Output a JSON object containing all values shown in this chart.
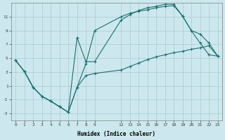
{
  "xlabel": "Humidex (Indice chaleur)",
  "bg_color": "#cce8ee",
  "grid_color": "#aacccc",
  "line_color": "#1a7070",
  "xlim": [
    -0.5,
    23.5
  ],
  "ylim": [
    -4.0,
    13.0
  ],
  "xtick_positions": [
    0,
    1,
    2,
    3,
    4,
    5,
    6,
    7,
    8,
    9,
    12,
    13,
    14,
    15,
    16,
    17,
    18,
    19,
    20,
    21,
    22,
    23
  ],
  "xtick_labels": [
    "0",
    "1",
    "2",
    "3",
    "4",
    "5",
    "6",
    "7",
    "8",
    "9",
    "12",
    "13",
    "14",
    "15",
    "16",
    "17",
    "18",
    "19",
    "20",
    "21",
    "22",
    "23"
  ],
  "yticks": [
    -3,
    -1,
    1,
    3,
    5,
    7,
    9,
    11
  ],
  "line1_x": [
    0,
    1,
    2,
    3,
    4,
    5,
    6,
    7,
    8,
    9,
    12,
    13,
    14,
    15,
    16,
    17,
    18,
    19,
    20,
    21,
    22,
    23
  ],
  "line1_y": [
    4.7,
    3.1,
    0.8,
    -0.5,
    -1.2,
    -2.0,
    -2.8,
    0.8,
    4.2,
    9.0,
    11.0,
    11.5,
    11.8,
    12.0,
    12.3,
    12.5,
    12.6,
    11.1,
    9.0,
    7.2,
    5.5,
    5.3
  ],
  "line2_x": [
    0,
    1,
    2,
    3,
    4,
    5,
    6,
    7,
    8,
    9,
    12,
    13,
    14,
    15,
    16,
    17,
    18,
    19,
    20,
    21,
    22,
    23
  ],
  "line2_y": [
    4.7,
    3.1,
    0.8,
    -0.5,
    -1.2,
    -2.0,
    -2.8,
    8.0,
    4.5,
    4.5,
    10.5,
    11.3,
    11.9,
    12.3,
    12.5,
    12.8,
    12.8,
    11.1,
    9.0,
    8.5,
    7.2,
    5.3
  ],
  "line3_x": [
    0,
    1,
    2,
    3,
    4,
    5,
    6,
    7,
    8,
    9,
    12,
    13,
    14,
    15,
    16,
    17,
    18,
    19,
    20,
    21,
    22,
    23
  ],
  "line3_y": [
    4.7,
    3.1,
    0.8,
    -0.5,
    -1.2,
    -2.0,
    -2.8,
    0.8,
    2.5,
    2.8,
    3.3,
    3.8,
    4.3,
    4.8,
    5.2,
    5.5,
    5.8,
    6.0,
    6.3,
    6.5,
    6.8,
    5.3
  ]
}
